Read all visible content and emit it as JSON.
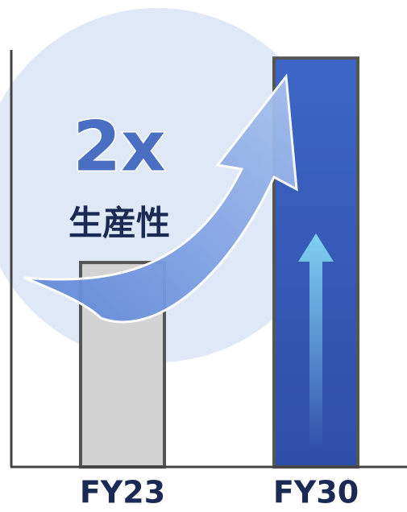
{
  "chart_data": {
    "type": "bar",
    "categories": [
      "FY23",
      "FY30"
    ],
    "values": [
      1,
      2
    ],
    "colors": [
      "#d3d3d3",
      "#3c66c6"
    ],
    "ylim": [
      0,
      2.04
    ],
    "annotation": "2x",
    "annotation_label": "生産性"
  }
}
